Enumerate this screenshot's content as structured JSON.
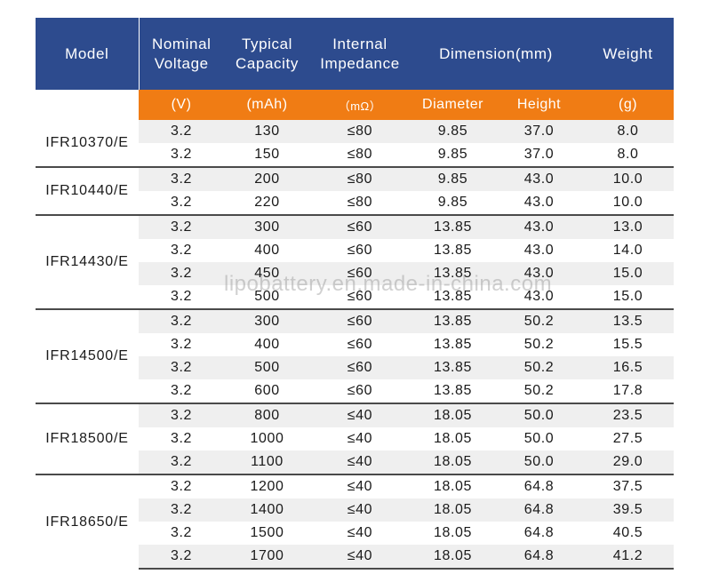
{
  "header": {
    "model": "Model",
    "voltage": [
      "Nominal",
      "Voltage"
    ],
    "capacity": [
      "Typical",
      "Capacity"
    ],
    "impedance": [
      "Internal",
      "Impedance"
    ],
    "dimension": "Dimension(mm)",
    "weight": "Weight"
  },
  "units": {
    "voltage": "(V)",
    "capacity": "(mAh)",
    "impedance": "（mΩ）",
    "diameter": "Diameter",
    "height": "Height",
    "weight": "(g)"
  },
  "groups": [
    {
      "model": "IFR10370/E",
      "rows": [
        [
          "3.2",
          "130",
          "≤80",
          "9.85",
          "37.0",
          "8.0"
        ],
        [
          "3.2",
          "150",
          "≤80",
          "9.85",
          "37.0",
          "8.0"
        ]
      ]
    },
    {
      "model": "IFR10440/E",
      "rows": [
        [
          "3.2",
          "200",
          "≤80",
          "9.85",
          "43.0",
          "10.0"
        ],
        [
          "3.2",
          "220",
          "≤80",
          "9.85",
          "43.0",
          "10.0"
        ]
      ]
    },
    {
      "model": "IFR14430/E",
      "rows": [
        [
          "3.2",
          "300",
          "≤60",
          "13.85",
          "43.0",
          "13.0"
        ],
        [
          "3.2",
          "400",
          "≤60",
          "13.85",
          "43.0",
          "14.0"
        ],
        [
          "3.2",
          "450",
          "≤60",
          "13.85",
          "43.0",
          "15.0"
        ],
        [
          "3.2",
          "500",
          "≤60",
          "13.85",
          "43.0",
          "15.0"
        ]
      ]
    },
    {
      "model": "IFR14500/E",
      "rows": [
        [
          "3.2",
          "300",
          "≤60",
          "13.85",
          "50.2",
          "13.5"
        ],
        [
          "3.2",
          "400",
          "≤60",
          "13.85",
          "50.2",
          "15.5"
        ],
        [
          "3.2",
          "500",
          "≤60",
          "13.85",
          "50.2",
          "16.5"
        ],
        [
          "3.2",
          "600",
          "≤60",
          "13.85",
          "50.2",
          "17.8"
        ]
      ]
    },
    {
      "model": "IFR18500/E",
      "rows": [
        [
          "3.2",
          "800",
          "≤40",
          "18.05",
          "50.0",
          "23.5"
        ],
        [
          "3.2",
          "1000",
          "≤40",
          "18.05",
          "50.0",
          "27.5"
        ],
        [
          "3.2",
          "1100",
          "≤40",
          "18.05",
          "50.0",
          "29.0"
        ]
      ]
    },
    {
      "model": "IFR18650/E",
      "rows": [
        [
          "3.2",
          "1200",
          "≤40",
          "18.05",
          "64.8",
          "37.5"
        ],
        [
          "3.2",
          "1400",
          "≤40",
          "18.05",
          "64.8",
          "39.5"
        ],
        [
          "3.2",
          "1500",
          "≤40",
          "18.05",
          "64.8",
          "40.5"
        ],
        [
          "3.2",
          "1700",
          "≤40",
          "18.05",
          "64.8",
          "41.2"
        ]
      ]
    }
  ],
  "watermark": "lipobattery.en.made-in-china.com",
  "colors": {
    "header_blue": "#2d4b8e",
    "units_orange": "#f07c14",
    "row_shade": "#efefef",
    "text": "#1a1a1a"
  }
}
